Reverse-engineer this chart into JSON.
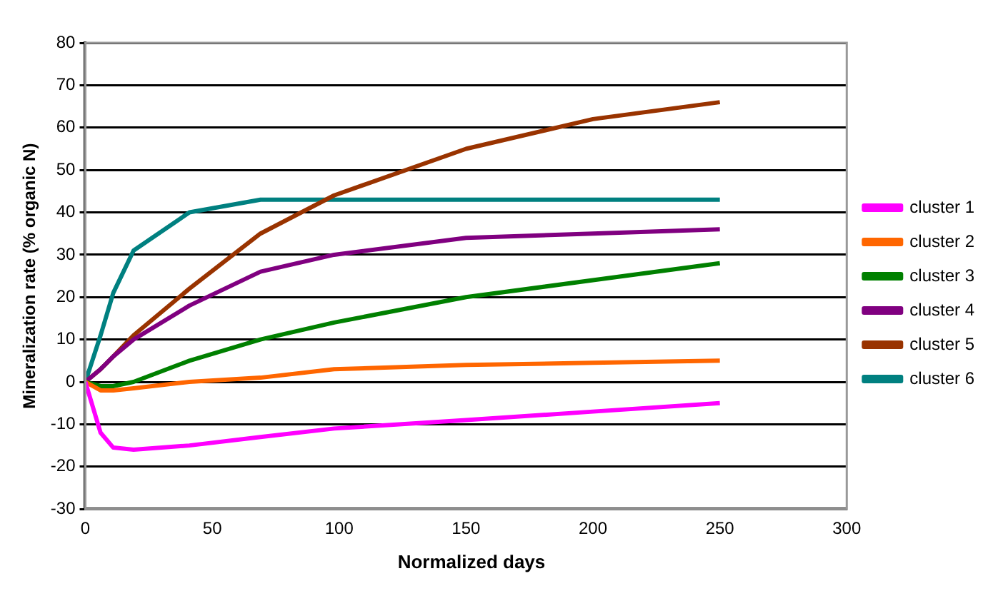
{
  "chart_data": {
    "type": "line",
    "xlabel": "Normalized days",
    "ylabel": "Mineralization rate (% organic N)",
    "x": [
      0,
      6,
      11,
      19,
      41,
      69,
      98,
      150,
      200,
      250
    ],
    "series": [
      {
        "name": "cluster 1",
        "color": "#ff00ff",
        "values": [
          0,
          -12,
          -15.5,
          -16,
          -15,
          -13,
          -11,
          -9,
          -7,
          -5
        ]
      },
      {
        "name": "cluster 2",
        "color": "#ff6600",
        "values": [
          0,
          -2,
          -2,
          -1.5,
          0,
          1,
          3,
          4,
          4.5,
          5
        ]
      },
      {
        "name": "cluster 3",
        "color": "#008000",
        "values": [
          0,
          -1,
          -1,
          0,
          5,
          10,
          14,
          20,
          24,
          28
        ]
      },
      {
        "name": "cluster 4",
        "color": "#800080",
        "values": [
          0,
          3,
          6,
          10,
          18,
          26,
          30,
          34,
          35,
          36
        ]
      },
      {
        "name": "cluster 5",
        "color": "#993300",
        "values": [
          0,
          3,
          6,
          11,
          22,
          35,
          44,
          55,
          62,
          66
        ]
      },
      {
        "name": "cluster 6",
        "color": "#008080",
        "values": [
          0,
          11,
          21,
          31,
          40,
          43,
          43,
          43,
          43,
          43
        ]
      }
    ],
    "xlim": [
      0,
      300
    ],
    "xticks": [
      0,
      50,
      100,
      150,
      200,
      250,
      300
    ],
    "ylim": [
      -30,
      80
    ],
    "yticks": [
      -30,
      -20,
      -10,
      0,
      10,
      20,
      30,
      40,
      50,
      60,
      70,
      80
    ],
    "grid": "y",
    "legend": "right",
    "marker": "none",
    "line_style": "solid"
  }
}
